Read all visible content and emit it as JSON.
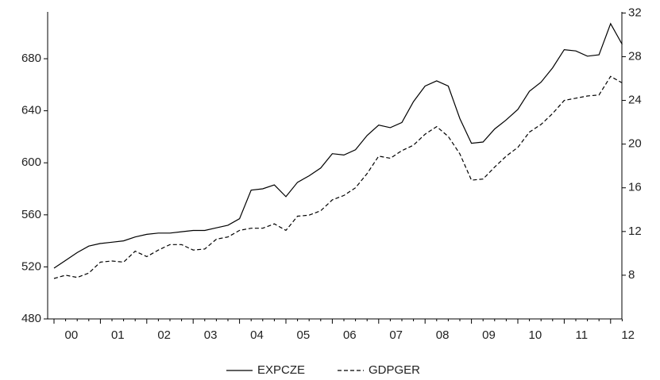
{
  "chart_data": {
    "type": "line",
    "categories": [
      null,
      "00",
      null,
      null,
      null,
      "01",
      null,
      null,
      null,
      "02",
      null,
      null,
      null,
      "03",
      null,
      null,
      null,
      "04",
      null,
      null,
      null,
      "05",
      null,
      null,
      null,
      "06",
      null,
      null,
      null,
      "07",
      null,
      null,
      null,
      "08",
      null,
      null,
      null,
      "09",
      null,
      null,
      null,
      "10",
      null,
      null,
      null,
      "11",
      null,
      null,
      null,
      "12"
    ],
    "series": [
      {
        "name": "EXPCZE",
        "color": "#000000",
        "line_style": "solid",
        "axis": "y",
        "values": [
          519,
          525,
          531,
          536,
          538,
          539,
          540,
          543,
          545,
          546,
          546,
          547,
          548,
          548,
          550,
          552,
          557,
          579,
          580,
          583,
          574,
          585,
          590,
          596,
          607,
          606,
          610,
          621,
          629,
          627,
          631,
          647,
          659,
          663,
          659,
          634,
          615,
          616,
          626,
          633,
          641,
          655,
          662,
          673,
          687,
          686,
          682,
          683,
          707,
          691
        ]
      },
      {
        "name": "GDPGER",
        "color": "#000000",
        "line_style": "dashed",
        "axis": "y2",
        "values": [
          7.7,
          8.0,
          7.8,
          8.2,
          9.2,
          9.3,
          9.2,
          10.2,
          9.7,
          10.3,
          10.8,
          10.8,
          10.3,
          10.4,
          11.3,
          11.5,
          12.1,
          12.3,
          12.3,
          12.7,
          12.1,
          13.4,
          13.5,
          13.9,
          14.9,
          15.3,
          16.0,
          17.3,
          18.9,
          18.7,
          19.4,
          19.9,
          20.9,
          21.6,
          20.7,
          19.1,
          16.7,
          16.8,
          17.9,
          18.9,
          19.7,
          21.1,
          21.8,
          22.8,
          24.0,
          24.2,
          24.4,
          24.5,
          26.2,
          25.6
        ]
      }
    ],
    "ylim": [
      480,
      716
    ],
    "yticks": [
      480,
      520,
      560,
      600,
      640,
      680
    ],
    "y2lim": [
      4,
      32.1
    ],
    "y2ticks": [
      8,
      12,
      16,
      20,
      24,
      28,
      32
    ],
    "grid": false,
    "legend": "bottom"
  }
}
